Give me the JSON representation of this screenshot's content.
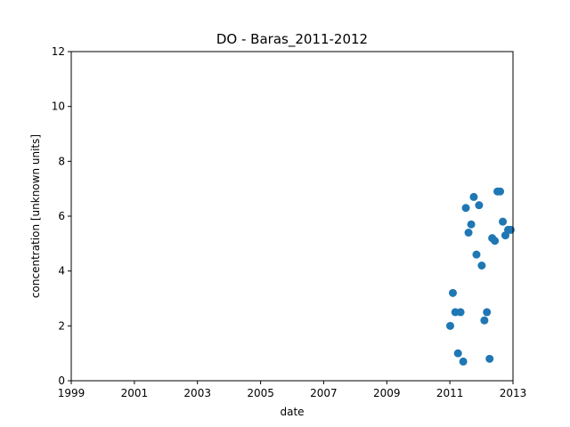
{
  "chart_data": {
    "type": "scatter",
    "title": "DO - Baras_2011-2012",
    "xlabel": "date",
    "ylabel": "concentration [unknown units]",
    "xlim": [
      "1999-01-01",
      "2013-01-01"
    ],
    "ylim": [
      0,
      12
    ],
    "x_ticks": [
      "1999",
      "2001",
      "2003",
      "2005",
      "2007",
      "2009",
      "2011",
      "2013"
    ],
    "y_ticks": [
      "0",
      "2",
      "4",
      "6",
      "8",
      "10",
      "12"
    ],
    "grid": false,
    "color": "#1f77b4",
    "points": [
      {
        "x": "2011-01-05",
        "y": 2.0
      },
      {
        "x": "2011-02-05",
        "y": 3.2
      },
      {
        "x": "2011-03-05",
        "y": 2.5
      },
      {
        "x": "2011-04-05",
        "y": 1.0
      },
      {
        "x": "2011-05-05",
        "y": 2.5
      },
      {
        "x": "2011-06-05",
        "y": 0.7
      },
      {
        "x": "2011-07-05",
        "y": 6.3
      },
      {
        "x": "2011-08-05",
        "y": 5.4
      },
      {
        "x": "2011-09-05",
        "y": 5.7
      },
      {
        "x": "2011-10-05",
        "y": 6.7
      },
      {
        "x": "2011-11-05",
        "y": 4.6
      },
      {
        "x": "2011-12-05",
        "y": 6.4
      },
      {
        "x": "2012-01-05",
        "y": 4.2
      },
      {
        "x": "2012-02-05",
        "y": 2.2
      },
      {
        "x": "2012-03-05",
        "y": 2.5
      },
      {
        "x": "2012-04-05",
        "y": 0.8
      },
      {
        "x": "2012-05-05",
        "y": 5.2
      },
      {
        "x": "2012-06-05",
        "y": 5.1
      },
      {
        "x": "2012-07-05",
        "y": 6.9
      },
      {
        "x": "2012-08-05",
        "y": 6.9
      },
      {
        "x": "2012-09-05",
        "y": 5.8
      },
      {
        "x": "2012-10-05",
        "y": 5.3
      },
      {
        "x": "2012-11-05",
        "y": 5.5
      },
      {
        "x": "2012-12-05",
        "y": 5.5
      }
    ]
  }
}
